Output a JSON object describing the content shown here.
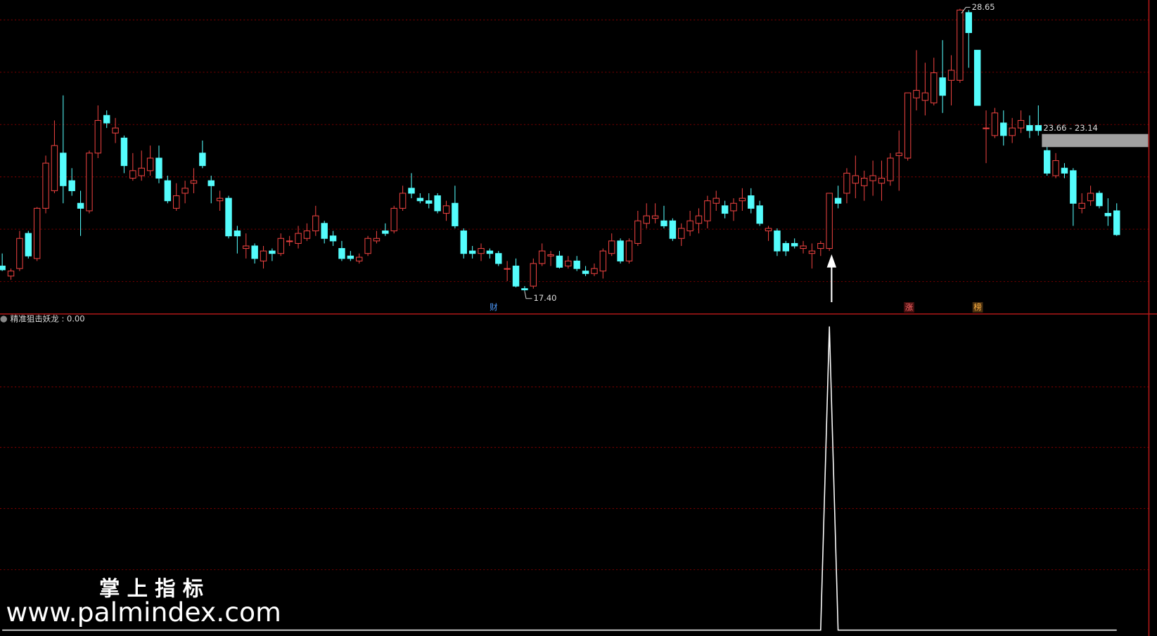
{
  "chart_data": [
    {
      "type": "candlestick",
      "open": [
        18.4,
        18.0,
        18.3,
        19.7,
        18.7,
        20.7,
        21.4,
        22.9,
        21.8,
        20.9,
        20.6,
        22.9,
        24.4,
        23.7,
        23.5,
        21.9,
        22.0,
        22.2,
        22.7,
        21.8,
        20.7,
        21.3,
        21.7,
        22.9,
        21.8,
        21.0,
        21.1,
        19.8,
        19.1,
        19.2,
        18.6,
        19.0,
        18.9,
        19.4,
        19.3,
        19.5,
        19.8,
        20.1,
        19.6,
        19.1,
        18.8,
        18.6,
        18.9,
        19.4,
        19.8,
        19.8,
        20.7,
        21.5,
        21.1,
        21.0,
        21.2,
        20.5,
        20.9,
        19.8,
        19.0,
        18.9,
        19.0,
        18.9,
        18.3,
        18.4,
        17.5,
        17.6,
        18.5,
        18.8,
        18.8,
        18.4,
        18.6,
        18.2,
        18.1,
        18.2,
        18.9,
        19.4,
        18.6,
        19.3,
        20.1,
        20.3,
        20.2,
        20.2,
        19.5,
        19.8,
        20.1,
        20.2,
        20.9,
        20.8,
        20.6,
        21.0,
        21.2,
        20.8,
        19.8,
        19.8,
        19.3,
        19.3,
        19.1,
        18.9,
        19.1,
        19.1,
        21.1,
        21.3,
        21.7,
        21.6,
        21.8,
        21.7,
        21.8,
        22.8,
        22.7,
        25.1,
        25.0,
        24.9,
        25.9,
        25.8,
        25.8,
        28.5,
        27.0,
        23.9,
        23.6,
        24.1,
        23.6,
        23.9,
        24.0,
        24.0,
        23.0,
        22.0,
        22.3,
        22.2,
        20.7,
        21.0,
        21.3,
        20.5,
        20.6
      ],
      "high": [
        18.9,
        18.3,
        19.8,
        19.8,
        20.75,
        22.8,
        24.2,
        25.2,
        22.3,
        21.4,
        23.0,
        24.8,
        24.6,
        24.3,
        23.6,
        22.9,
        23.0,
        23.2,
        23.2,
        22.0,
        21.7,
        21.8,
        22.3,
        23.4,
        22.0,
        21.4,
        21.2,
        20.0,
        19.7,
        19.3,
        19.2,
        19.1,
        19.7,
        19.6,
        20.0,
        20.1,
        20.8,
        20.2,
        19.8,
        19.4,
        19.0,
        18.9,
        19.6,
        19.8,
        20.1,
        20.8,
        21.6,
        22.1,
        21.3,
        21.3,
        21.3,
        21.0,
        21.6,
        19.9,
        19.2,
        19.3,
        19.1,
        19.0,
        18.6,
        18.7,
        17.6,
        18.7,
        19.3,
        19.0,
        19.0,
        18.8,
        18.8,
        18.4,
        18.5,
        19.1,
        19.7,
        19.5,
        19.5,
        20.6,
        20.9,
        20.9,
        20.8,
        20.3,
        20.1,
        20.6,
        20.7,
        21.2,
        21.4,
        21.0,
        21.1,
        21.5,
        21.5,
        21.0,
        20.0,
        19.9,
        19.4,
        19.5,
        19.4,
        19.3,
        19.4,
        21.3,
        21.6,
        22.3,
        22.8,
        22.2,
        22.6,
        22.6,
        22.9,
        23.8,
        25.3,
        27.0,
        26.5,
        26.7,
        27.4,
        26.8,
        28.65,
        28.6,
        27.0,
        24.6,
        24.7,
        24.6,
        24.3,
        24.6,
        24.4,
        24.8,
        23.2,
        22.9,
        22.5,
        22.3,
        21.3,
        21.6,
        21.4,
        21.1,
        20.9
      ],
      "low": [
        18.2,
        17.85,
        18.2,
        18.7,
        18.6,
        20.5,
        21.3,
        20.9,
        21.2,
        19.6,
        20.5,
        22.7,
        23.9,
        23.3,
        22.1,
        21.8,
        21.8,
        22.0,
        21.7,
        20.9,
        20.6,
        20.9,
        21.3,
        22.3,
        20.9,
        20.6,
        19.5,
        18.9,
        18.7,
        18.5,
        18.3,
        18.6,
        18.8,
        19.2,
        19.1,
        19.4,
        19.6,
        19.3,
        19.2,
        18.6,
        18.6,
        18.5,
        18.8,
        19.3,
        19.6,
        19.7,
        20.6,
        21.1,
        20.9,
        20.7,
        20.5,
        20.2,
        19.9,
        18.7,
        18.7,
        18.6,
        18.7,
        18.4,
        17.8,
        17.55,
        17.4,
        17.5,
        18.4,
        18.4,
        18.3,
        18.3,
        18.2,
        18.0,
        18.0,
        17.9,
        18.8,
        18.5,
        18.5,
        19.2,
        19.9,
        20.1,
        19.9,
        19.4,
        19.2,
        19.6,
        19.7,
        19.9,
        20.6,
        20.3,
        20.2,
        20.6,
        20.5,
        20.0,
        19.4,
        18.8,
        18.8,
        19.1,
        18.9,
        18.3,
        18.8,
        19.0,
        20.7,
        20.9,
        21.1,
        21.0,
        21.2,
        21.0,
        21.6,
        21.4,
        22.6,
        24.6,
        24.4,
        24.8,
        24.5,
        24.8,
        25.7,
        26.3,
        24.8,
        22.5,
        23.5,
        23.2,
        23.3,
        23.7,
        23.5,
        23.6,
        22.0,
        21.9,
        21.9,
        20.0,
        20.5,
        20.8,
        20.7,
        20.0,
        19.6
      ],
      "close": [
        18.25,
        18.2,
        19.5,
        18.8,
        20.7,
        22.5,
        23.2,
        21.6,
        21.4,
        20.7,
        22.9,
        24.2,
        24.1,
        23.9,
        22.4,
        22.2,
        22.3,
        22.7,
        21.9,
        21.0,
        21.2,
        21.5,
        21.8,
        22.4,
        21.6,
        21.1,
        19.6,
        19.6,
        19.2,
        18.7,
        19.0,
        18.9,
        19.5,
        19.4,
        19.7,
        19.8,
        20.4,
        19.5,
        19.4,
        18.7,
        18.7,
        18.75,
        19.5,
        19.5,
        19.7,
        20.7,
        21.3,
        21.3,
        21.0,
        20.9,
        20.6,
        20.8,
        20.0,
        18.9,
        18.9,
        19.1,
        18.9,
        18.5,
        18.3,
        17.6,
        17.45,
        18.5,
        19.0,
        18.85,
        18.35,
        18.6,
        18.3,
        18.1,
        18.3,
        19.0,
        19.4,
        18.6,
        19.4,
        20.2,
        20.4,
        20.4,
        20.0,
        19.5,
        19.9,
        20.2,
        20.4,
        21.0,
        21.1,
        20.5,
        20.9,
        21.1,
        20.7,
        20.1,
        19.9,
        19.0,
        19.0,
        19.2,
        19.2,
        19.0,
        19.3,
        21.3,
        20.9,
        22.1,
        22.0,
        21.9,
        22.0,
        21.9,
        22.7,
        22.9,
        25.3,
        25.4,
        25.3,
        26.1,
        25.2,
        26.2,
        28.6,
        27.7,
        24.8,
        23.9,
        24.5,
        23.6,
        23.9,
        24.2,
        23.8,
        23.8,
        22.1,
        22.6,
        22.1,
        20.9,
        20.9,
        21.3,
        20.8,
        20.4,
        19.65
      ],
      "ylim": [
        16.52,
        29.0
      ],
      "up_color": "#e8413f",
      "down_color": "#54fcfc",
      "max_label": {
        "value": 28.65,
        "label": "28.65"
      },
      "min_label": {
        "value": 17.4,
        "label": "17.40"
      },
      "range_band": {
        "values": [
          23.66,
          23.14
        ],
        "label": "23.66 - 23.14",
        "color": "#a0a0a0"
      },
      "event_labels": [
        "财",
        "涨",
        "榜"
      ]
    },
    {
      "type": "line",
      "title": "精准狙击妖龙 : 0.00",
      "values": [
        0,
        0,
        0,
        0,
        0,
        0,
        0,
        0,
        0,
        0,
        0,
        0,
        0,
        0,
        0,
        0,
        0,
        0,
        0,
        0,
        0,
        0,
        0,
        0,
        0,
        0,
        0,
        0,
        0,
        0,
        0,
        0,
        0,
        0,
        0,
        0,
        0,
        0,
        0,
        0,
        0,
        0,
        0,
        0,
        0,
        0,
        0,
        0,
        0,
        0,
        0,
        0,
        0,
        0,
        0,
        0,
        0,
        0,
        0,
        0,
        0,
        0,
        0,
        0,
        0,
        0,
        0,
        0,
        0,
        0,
        0,
        0,
        0,
        0,
        0,
        0,
        0,
        0,
        0,
        0,
        0,
        0,
        0,
        0,
        0,
        0,
        0,
        0,
        0,
        0,
        0,
        0,
        0,
        0,
        0,
        1,
        0,
        0,
        0,
        0,
        0,
        0,
        0,
        0,
        0,
        0,
        0,
        0,
        0,
        0,
        0,
        0,
        0,
        0,
        0,
        0,
        0,
        0,
        0,
        0,
        0,
        0,
        0,
        0,
        0,
        0,
        0,
        0,
        0
      ],
      "color": "#ffffff",
      "ylim": [
        0,
        1
      ]
    }
  ],
  "watermark": {
    "title": "掌 上 指 标",
    "url": "www.palmindex.com"
  }
}
